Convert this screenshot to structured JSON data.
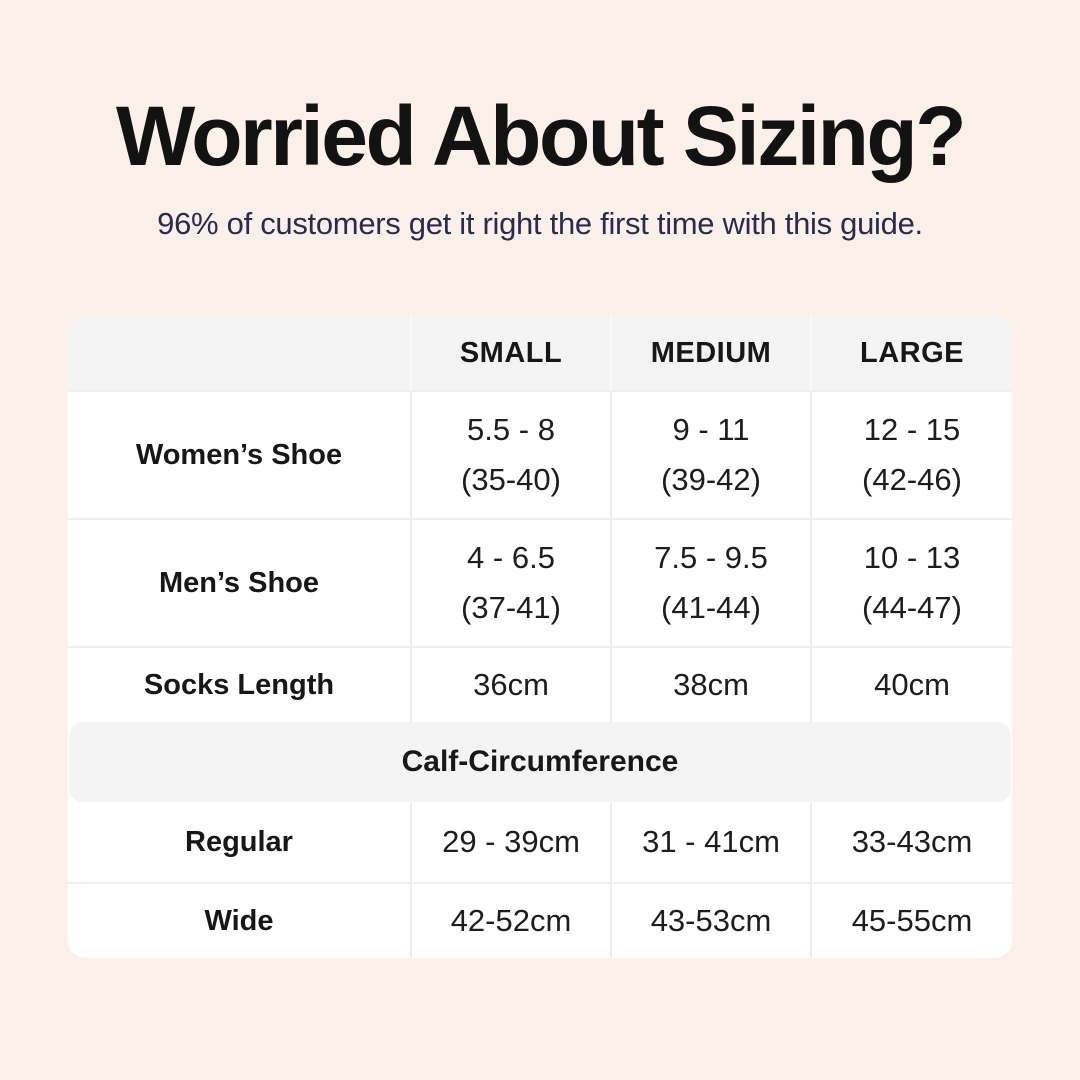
{
  "header": {
    "title": "Worried About Sizing?",
    "subtitle": "96% of customers get it right the first time with this guide."
  },
  "size_chart": {
    "column_headers": [
      "",
      "SMALL",
      "MEDIUM",
      "LARGE"
    ],
    "rows": [
      {
        "label": "Women’s Shoe",
        "cells": [
          {
            "primary": "5.5 - 8",
            "secondary": "(35-40)"
          },
          {
            "primary": "9 - 11",
            "secondary": "(39-42)"
          },
          {
            "primary": "12 - 15",
            "secondary": "(42-46)"
          }
        ]
      },
      {
        "label": "Men’s Shoe",
        "cells": [
          {
            "primary": "4 - 6.5",
            "secondary": "(37-41)"
          },
          {
            "primary": "7.5 - 9.5",
            "secondary": "(41-44)"
          },
          {
            "primary": "10 - 13",
            "secondary": "(44-47)"
          }
        ]
      },
      {
        "label": "Socks Length",
        "cells": [
          {
            "primary": "36cm"
          },
          {
            "primary": "38cm"
          },
          {
            "primary": "40cm"
          }
        ]
      }
    ],
    "section_header": "Calf-Circumference",
    "section_rows": [
      {
        "label": "Regular",
        "cells": [
          {
            "primary": "29 - 39cm"
          },
          {
            "primary": "31 - 41cm"
          },
          {
            "primary": "33-43cm"
          }
        ]
      },
      {
        "label": "Wide",
        "cells": [
          {
            "primary": "42-52cm"
          },
          {
            "primary": "43-53cm"
          },
          {
            "primary": "45-55cm"
          }
        ]
      }
    ]
  },
  "colors": {
    "page_background": "#fcf1ea",
    "card_background": "#ffffff",
    "band_background": "#f4f4f5",
    "divider": "#ededee",
    "title_text": "#121212",
    "subtitle_text": "#2b2b4d",
    "table_text": "#1d1d1f"
  }
}
